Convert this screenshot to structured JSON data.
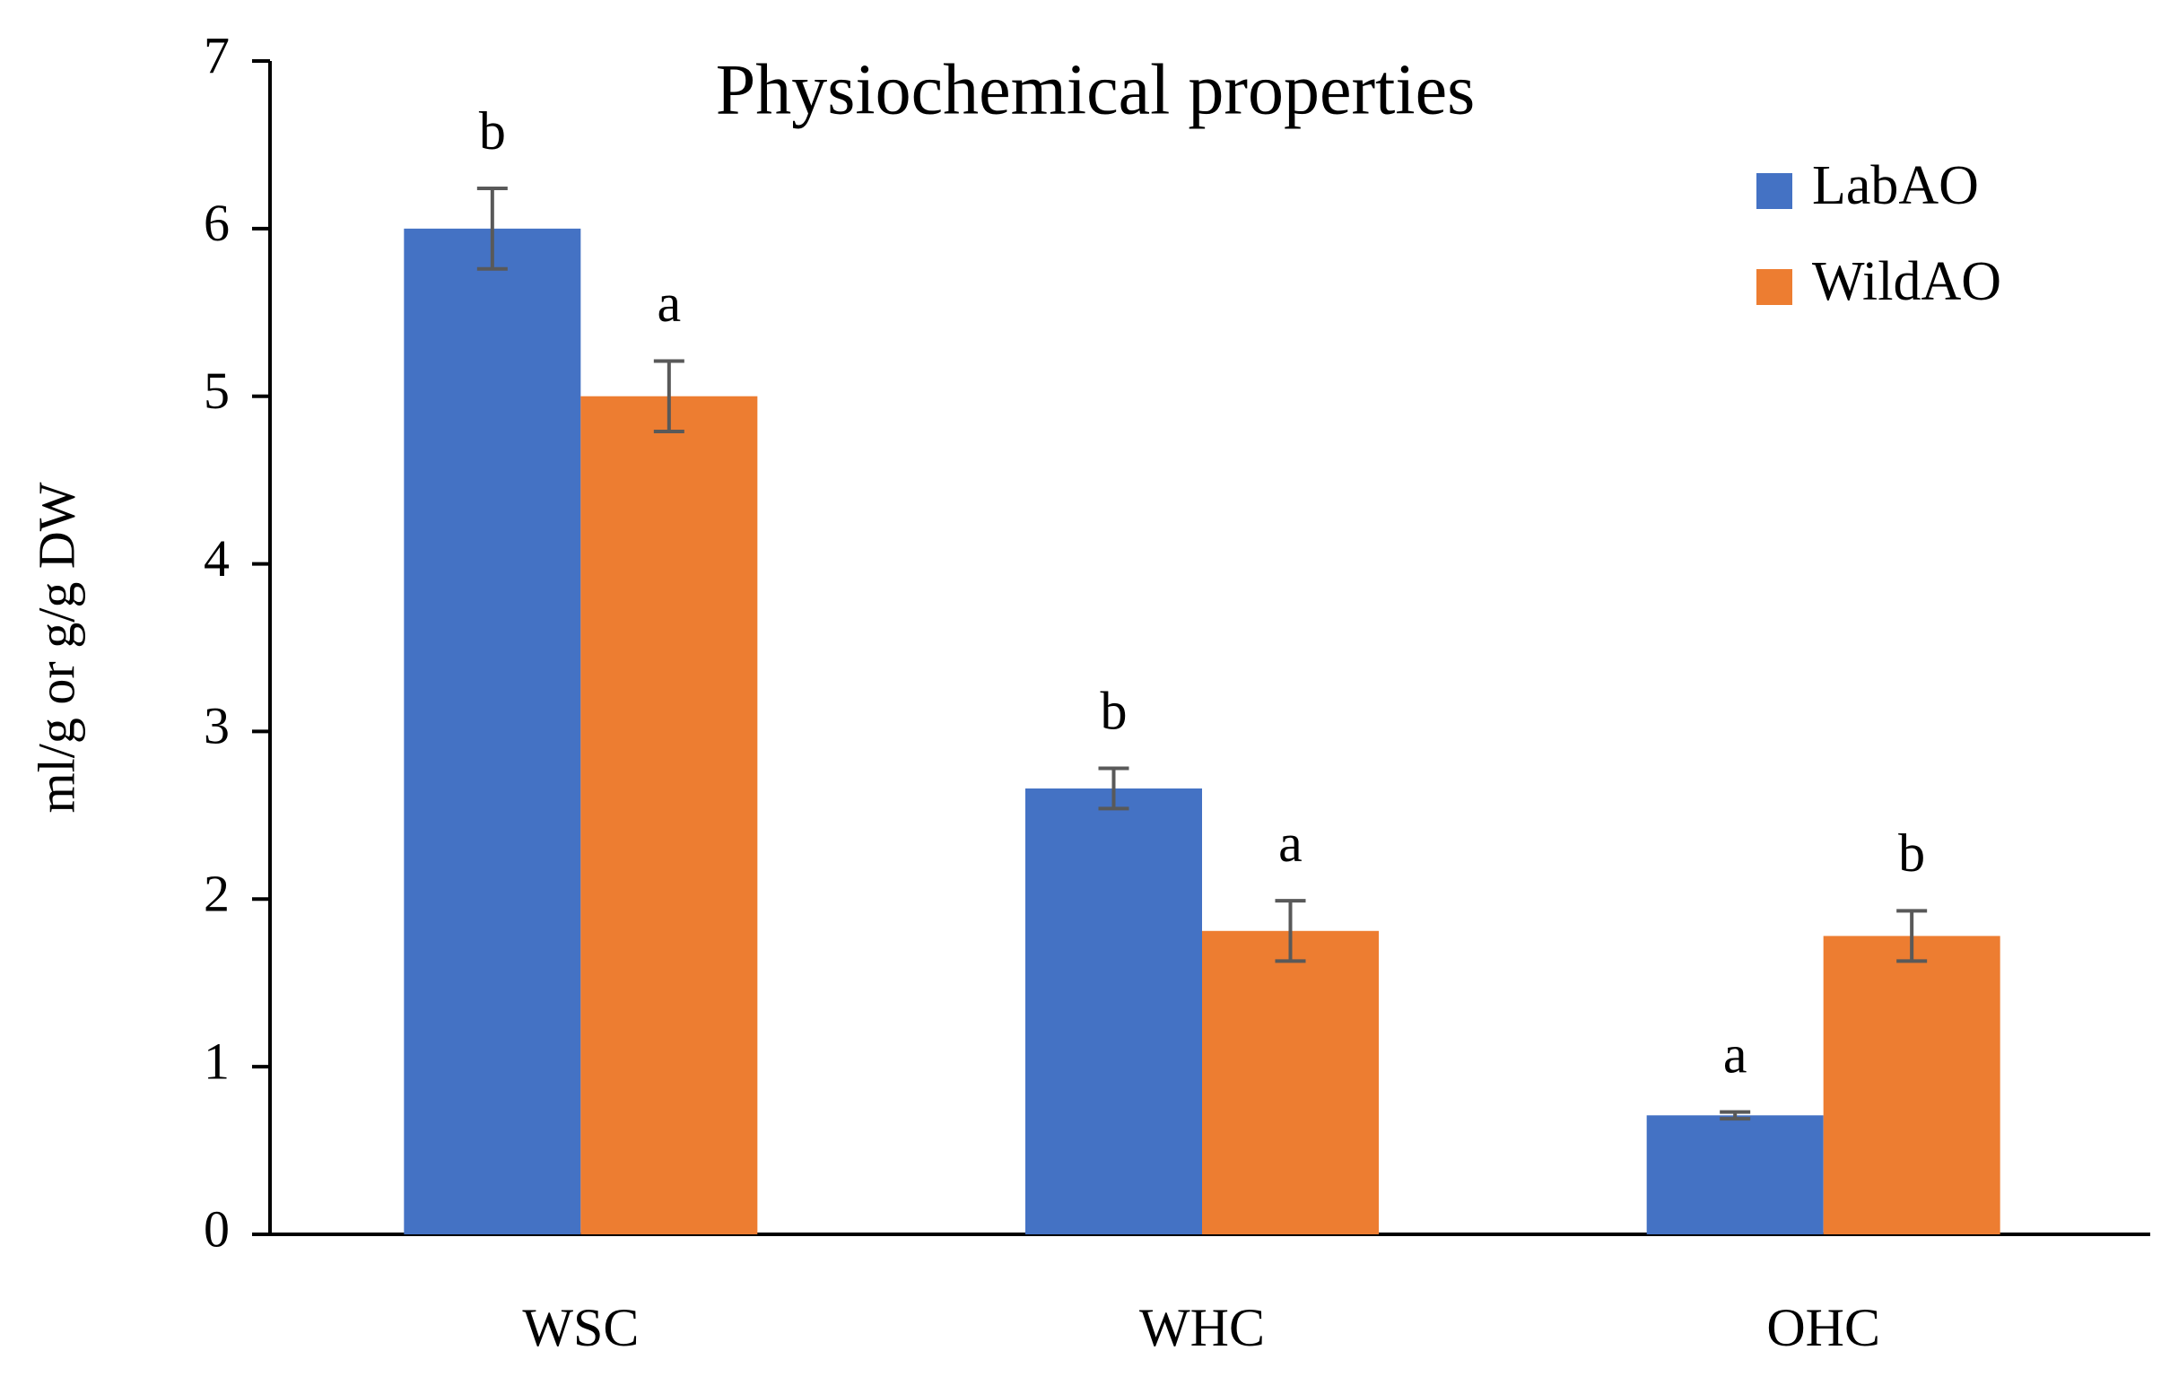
{
  "chart_data": {
    "type": "bar",
    "title": "Physiochemical properties",
    "y_label": "ml/g or g/g DW",
    "categories": [
      "WSC",
      "WHC",
      "OHC"
    ],
    "series": [
      {
        "name": "LabAO",
        "color": "#4472c4",
        "values": [
          6.0,
          2.66,
          0.71
        ],
        "errors": [
          0.24,
          0.12,
          0.02
        ],
        "labels": [
          "b",
          "b",
          "a"
        ]
      },
      {
        "name": "WildAO",
        "color": "#ed7d31",
        "values": [
          5.0,
          1.81,
          1.78
        ],
        "errors": [
          0.21,
          0.18,
          0.15
        ],
        "labels": [
          "a",
          "a",
          "b"
        ]
      }
    ],
    "ylim": [
      0,
      7
    ],
    "yticks": [
      0,
      1,
      2,
      3,
      4,
      5,
      6,
      7
    ],
    "grid": false,
    "legend": "top-right"
  }
}
